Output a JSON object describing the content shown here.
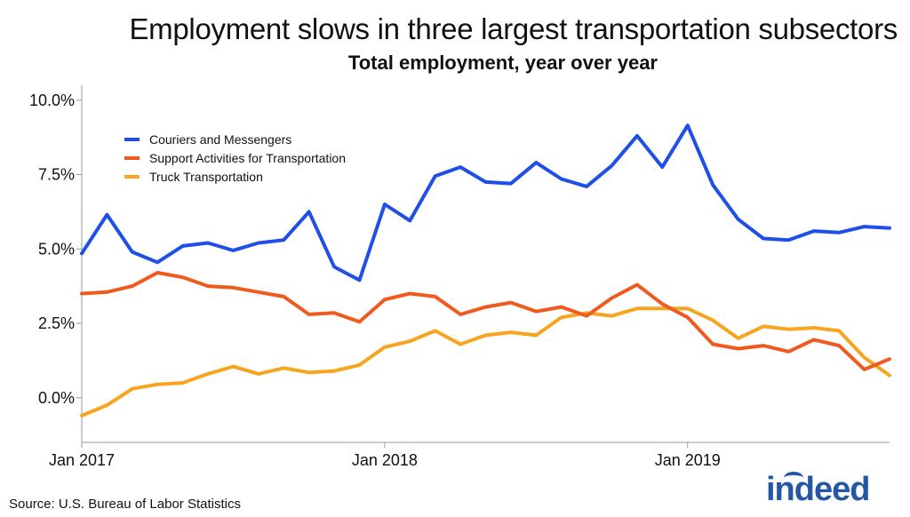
{
  "chart_data": {
    "type": "line",
    "title": "Employment slows in three largest transportation subsectors",
    "subtitle": "Total employment, year over year",
    "xlabel": "",
    "ylabel": "",
    "ylim": [
      -1.5,
      10.5
    ],
    "y_ticks": [
      0,
      2.5,
      5,
      7.5,
      10
    ],
    "y_tick_labels": [
      "0.0%",
      "2.5%",
      "5.0%",
      "7.5%",
      "10.0%"
    ],
    "x_tick_labels": [
      "Jan 2017",
      "Jan 2018",
      "Jan 2019"
    ],
    "x_tick_index": [
      0,
      12,
      24
    ],
    "x_range": [
      0,
      32
    ],
    "grid": false,
    "legend_position": "top-left",
    "series": [
      {
        "name": "Couriers and Messengers",
        "color": "#1f4ee8",
        "values": [
          4.85,
          6.15,
          4.9,
          4.55,
          5.1,
          5.2,
          4.95,
          5.2,
          5.3,
          6.25,
          4.4,
          3.95,
          6.5,
          5.95,
          7.45,
          7.75,
          7.25,
          7.2,
          7.9,
          7.35,
          7.1,
          7.8,
          8.8,
          7.75,
          9.15,
          7.15,
          6.0,
          5.35,
          5.3,
          5.6,
          5.55,
          5.75,
          5.7
        ]
      },
      {
        "name": "Support Activities for Transportation",
        "color": "#f05a1e",
        "values": [
          3.5,
          3.55,
          3.75,
          4.2,
          4.05,
          3.75,
          3.7,
          3.55,
          3.4,
          2.8,
          2.85,
          2.55,
          3.3,
          3.5,
          3.4,
          2.8,
          3.05,
          3.2,
          2.9,
          3.05,
          2.75,
          3.35,
          3.8,
          3.15,
          2.7,
          1.8,
          1.65,
          1.75,
          1.55,
          1.95,
          1.75,
          0.95,
          1.3
        ]
      },
      {
        "name": "Truck Transportation",
        "color": "#f7a41f",
        "values": [
          -0.6,
          -0.25,
          0.3,
          0.45,
          0.5,
          0.8,
          1.05,
          0.8,
          1.0,
          0.85,
          0.9,
          1.1,
          1.7,
          1.9,
          2.25,
          1.8,
          2.1,
          2.2,
          2.1,
          2.7,
          2.85,
          2.75,
          3.0,
          3.0,
          3.0,
          2.6,
          2.0,
          2.4,
          2.3,
          2.35,
          2.25,
          1.35,
          0.75
        ]
      }
    ]
  },
  "source": "Source: U.S. Bureau of Labor Statistics",
  "logo_text": "indeed"
}
